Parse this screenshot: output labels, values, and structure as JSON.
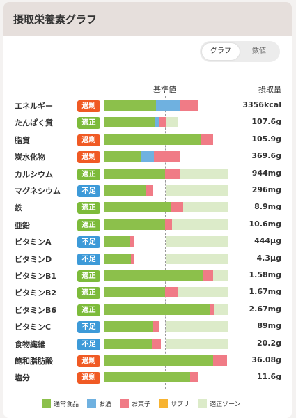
{
  "header": {
    "title": "摂取栄養素グラフ"
  },
  "toggle": {
    "graph": "グラフ",
    "number": "数値"
  },
  "columns": {
    "standard": "基準値",
    "intake": "摂取量"
  },
  "colors": {
    "over": "#f05a24",
    "ok": "#7dbb3b",
    "under": "#3d9ad8",
    "food": "#8cc04b",
    "alcohol": "#6fb1e0",
    "snack": "#f07b86",
    "supplement": "#f7b331",
    "zone": "#dcebc9"
  },
  "legend": [
    "通常食品",
    "お酒",
    "お菓子",
    "サプリ",
    "適正ゾーン"
  ],
  "chart_data": {
    "type": "bar",
    "note_units": "each bar segment value is relative to the standard value (1.0 = 基準値 line)",
    "series_names": [
      "通常食品",
      "お酒",
      "お菓子",
      "サプリ"
    ],
    "rows": [
      {
        "name": "エネルギー",
        "status": "過剰",
        "statusKey": "over",
        "value": "3356kcal",
        "food": 0.84,
        "alcohol": 0.4,
        "snack": 0.28,
        "zone": [
          0.92,
          1.08
        ]
      },
      {
        "name": "たんぱく質",
        "status": "適正",
        "statusKey": "ok",
        "value": "107.6g",
        "food": 0.83,
        "alcohol": 0.07,
        "snack": 0.1,
        "zone": [
          0.8,
          1.2
        ]
      },
      {
        "name": "脂質",
        "status": "過剰",
        "statusKey": "over",
        "value": "105.9g",
        "food": 1.57,
        "alcohol": 0,
        "snack": 0.19,
        "zone": [
          0.8,
          1.2
        ]
      },
      {
        "name": "炭水化物",
        "status": "過剰",
        "statusKey": "over",
        "value": "369.6g",
        "food": 0.61,
        "alcohol": 0.2,
        "snack": 0.42,
        "zone": [
          0.8,
          1.2
        ]
      },
      {
        "name": "カルシウム",
        "status": "適正",
        "statusKey": "ok",
        "value": "944mg",
        "food": 0.99,
        "alcohol": 0,
        "snack": 0.24,
        "zone": [
          1.0,
          2.0
        ]
      },
      {
        "name": "マグネシウム",
        "status": "不足",
        "statusKey": "under",
        "value": "296mg",
        "food": 0.69,
        "alcohol": 0,
        "snack": 0.11,
        "zone": [
          1.0,
          2.0
        ]
      },
      {
        "name": "鉄",
        "status": "適正",
        "statusKey": "ok",
        "value": "8.9mg",
        "food": 1.09,
        "alcohol": 0,
        "snack": 0.19,
        "zone": [
          1.0,
          2.0
        ]
      },
      {
        "name": "亜鉛",
        "status": "適正",
        "statusKey": "ok",
        "value": "10.6mg",
        "food": 0.99,
        "alcohol": 0,
        "snack": 0.11,
        "zone": [
          1.0,
          2.0
        ]
      },
      {
        "name": "ビタミンA",
        "status": "不足",
        "statusKey": "under",
        "value": "444μg",
        "food": 0.43,
        "alcohol": 0,
        "snack": 0.05,
        "zone": [
          1.0,
          2.0
        ]
      },
      {
        "name": "ビタミンD",
        "status": "不足",
        "statusKey": "under",
        "value": "4.3μg",
        "food": 0.44,
        "alcohol": 0,
        "snack": 0.04,
        "zone": [
          1.0,
          2.0
        ]
      },
      {
        "name": "ビタミンB1",
        "status": "適正",
        "statusKey": "ok",
        "value": "1.58mg",
        "food": 1.6,
        "alcohol": 0,
        "snack": 0.16,
        "zone": [
          1.0,
          2.0
        ]
      },
      {
        "name": "ビタミンB2",
        "status": "適正",
        "statusKey": "ok",
        "value": "1.67mg",
        "food": 0.99,
        "alcohol": 0,
        "snack": 0.2,
        "zone": [
          1.0,
          2.0
        ]
      },
      {
        "name": "ビタミンB6",
        "status": "適正",
        "statusKey": "ok",
        "value": "2.67mg",
        "food": 1.71,
        "alcohol": 0,
        "snack": 0.07,
        "zone": [
          1.0,
          2.0
        ]
      },
      {
        "name": "ビタミンC",
        "status": "不足",
        "statusKey": "under",
        "value": "89mg",
        "food": 0.8,
        "alcohol": 0,
        "snack": 0.09,
        "zone": [
          1.0,
          2.0
        ]
      },
      {
        "name": "食物繊維",
        "status": "不足",
        "statusKey": "under",
        "value": "20.2g",
        "food": 0.78,
        "alcohol": 0,
        "snack": 0.14,
        "zone": [
          1.0,
          2.0
        ]
      },
      {
        "name": "飽和脂肪酸",
        "status": "過剰",
        "statusKey": "over",
        "value": "36.08g",
        "food": 1.76,
        "alcohol": 0,
        "snack": 0.23,
        "zone": [
          0,
          1.0
        ]
      },
      {
        "name": "塩分",
        "status": "過剰",
        "statusKey": "over",
        "value": "11.6g",
        "food": 1.39,
        "alcohol": 0,
        "snack": 0.13,
        "zone": [
          0,
          1.0
        ]
      }
    ]
  }
}
